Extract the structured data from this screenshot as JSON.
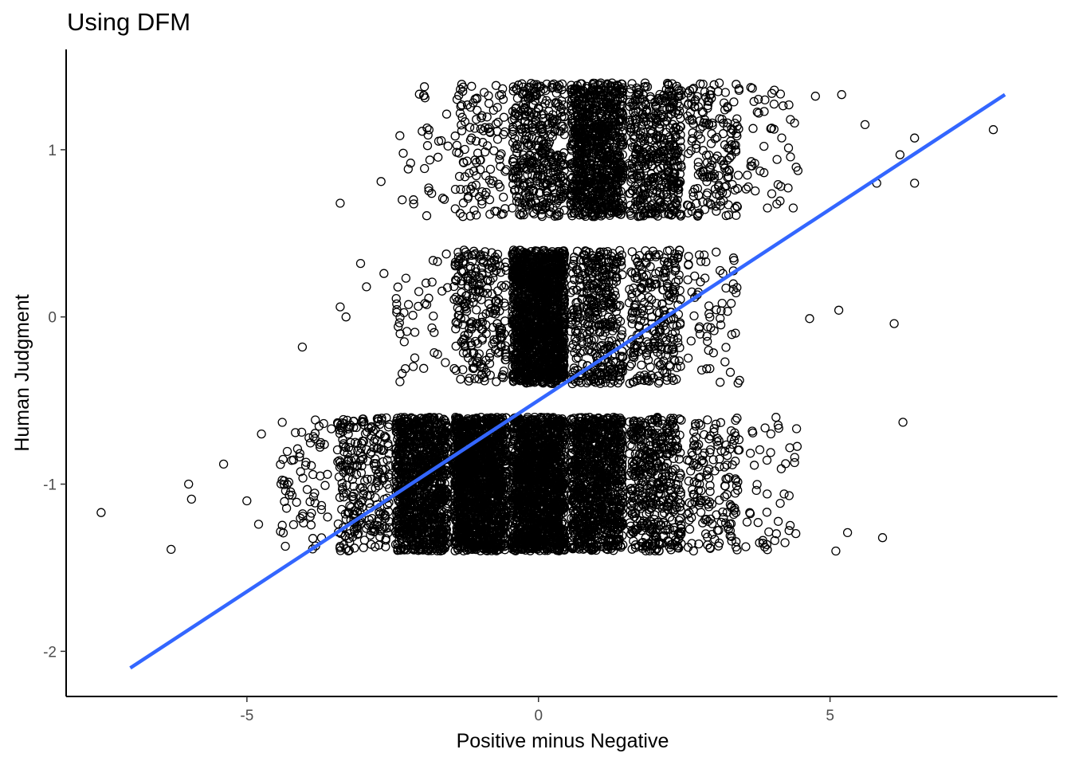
{
  "chart_data": {
    "type": "scatter",
    "title": "Using DFM",
    "xlabel": "Positive minus Negative",
    "ylabel": "Human Judgment",
    "xlim": [
      -8.1,
      8.9
    ],
    "ylim": [
      -2.27,
      1.6
    ],
    "x_ticks": [
      -5,
      0,
      5
    ],
    "x_tick_labels": [
      "-5",
      "0",
      "5"
    ],
    "y_ticks": [
      -2,
      -1,
      0,
      1
    ],
    "y_tick_labels": [
      "-2",
      "-1",
      "0",
      "1"
    ],
    "grid": false,
    "legend": "none",
    "jitter": {
      "x": 0.45,
      "y": 0.4
    },
    "clusters": [
      {
        "y": 1,
        "x": -2,
        "count": 30
      },
      {
        "y": 1,
        "x": -1,
        "count": 120
      },
      {
        "y": 1,
        "x": 0,
        "count": 400
      },
      {
        "y": 1,
        "x": 1,
        "count": 900
      },
      {
        "y": 1,
        "x": 2,
        "count": 450
      },
      {
        "y": 1,
        "x": 3,
        "count": 180
      },
      {
        "y": 1,
        "x": 4,
        "count": 45
      },
      {
        "y": 0,
        "x": -2,
        "count": 40
      },
      {
        "y": 0,
        "x": -1,
        "count": 250
      },
      {
        "y": 0,
        "x": 0,
        "count": 1500
      },
      {
        "y": 0,
        "x": 1,
        "count": 400
      },
      {
        "y": 0,
        "x": 2,
        "count": 250
      },
      {
        "y": 0,
        "x": 3,
        "count": 60
      },
      {
        "y": -1,
        "x": -4,
        "count": 70
      },
      {
        "y": -1,
        "x": -3,
        "count": 260
      },
      {
        "y": -1,
        "x": -2,
        "count": 1100
      },
      {
        "y": -1,
        "x": -1,
        "count": 1500
      },
      {
        "y": -1,
        "x": 0,
        "count": 1500
      },
      {
        "y": -1,
        "x": 1,
        "count": 1000
      },
      {
        "y": -1,
        "x": 2,
        "count": 450
      },
      {
        "y": -1,
        "x": 3,
        "count": 160
      },
      {
        "y": -1,
        "x": 4,
        "count": 45
      }
    ],
    "outliers": [
      {
        "x": -7.5,
        "y": -1.17
      },
      {
        "x": -6.3,
        "y": -1.39
      },
      {
        "x": -6.0,
        "y": -1.0
      },
      {
        "x": -5.95,
        "y": -1.09
      },
      {
        "x": -5.4,
        "y": -0.88
      },
      {
        "x": -5.0,
        "y": -1.1
      },
      {
        "x": -4.8,
        "y": -1.24
      },
      {
        "x": -4.75,
        "y": -0.7
      },
      {
        "x": -4.05,
        "y": -0.18
      },
      {
        "x": -3.4,
        "y": 0.68
      },
      {
        "x": -3.4,
        "y": 0.06
      },
      {
        "x": -3.3,
        "y": 0.0
      },
      {
        "x": -3.05,
        "y": 0.32
      },
      {
        "x": -2.95,
        "y": 0.18
      },
      {
        "x": -2.7,
        "y": 0.81
      },
      {
        "x": -2.65,
        "y": 0.26
      },
      {
        "x": 4.65,
        "y": -0.01
      },
      {
        "x": 4.75,
        "y": 1.32
      },
      {
        "x": 5.15,
        "y": 0.04
      },
      {
        "x": 5.2,
        "y": 1.33
      },
      {
        "x": 5.6,
        "y": 1.15
      },
      {
        "x": 5.8,
        "y": 0.8
      },
      {
        "x": 6.2,
        "y": 0.97
      },
      {
        "x": 6.1,
        "y": -0.04
      },
      {
        "x": 6.25,
        "y": -0.63
      },
      {
        "x": 6.45,
        "y": 1.07
      },
      {
        "x": 6.45,
        "y": 0.8
      },
      {
        "x": 5.9,
        "y": -1.32
      },
      {
        "x": 5.3,
        "y": -1.29
      },
      {
        "x": 5.1,
        "y": -1.4
      },
      {
        "x": 7.8,
        "y": 1.12
      }
    ],
    "series": [
      {
        "type": "line",
        "kind": "linear fit",
        "color": "#3366ff",
        "x": [
          -7.0,
          8.0
        ],
        "y": [
          -2.1,
          1.33
        ]
      }
    ],
    "colors": {
      "points": "#000000",
      "fit_line": "#3366ff",
      "axis": "#000000",
      "tick_label": "#4d4d4d"
    }
  }
}
